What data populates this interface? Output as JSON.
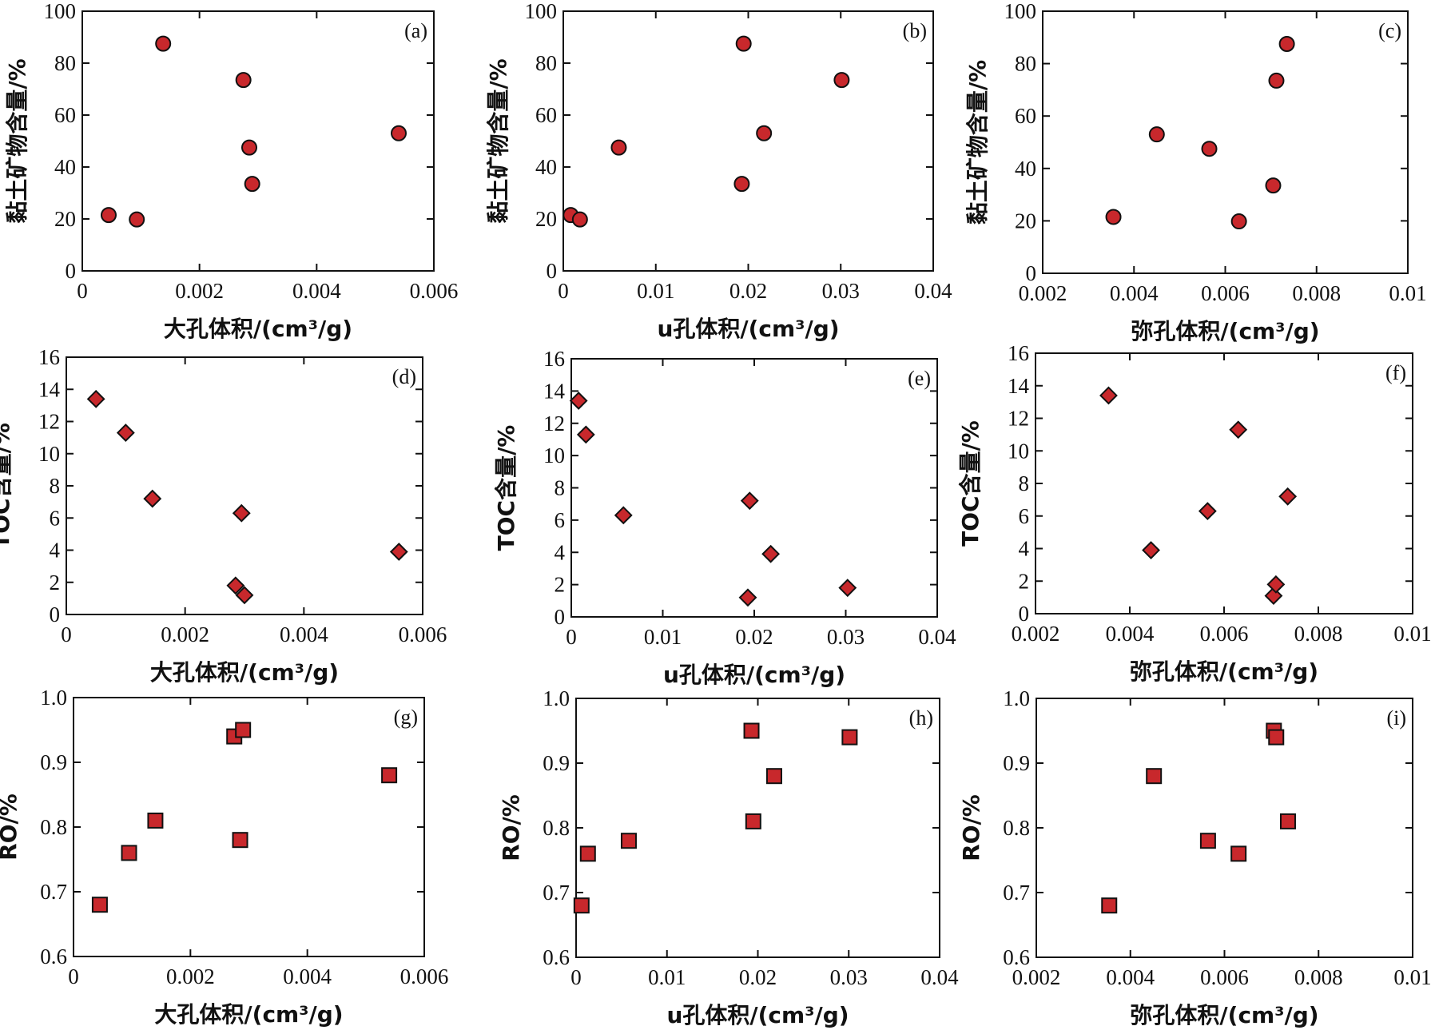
{
  "chart_data": [
    {
      "id": "a",
      "type": "scatter",
      "marker": "circle",
      "tag": "(a)",
      "xlabel": "大孔体积/(cm³/g)",
      "ylabel": "黏土矿物含量/%",
      "xlim": [
        0,
        0.006
      ],
      "ylim": [
        0,
        100
      ],
      "xticks": [
        "0",
        "0.002",
        "0.004",
        "0.006"
      ],
      "yticks": [
        "0",
        "20",
        "40",
        "60",
        "80",
        "100"
      ],
      "points": [
        [
          0.00045,
          21.5
        ],
        [
          0.00093,
          19.8
        ],
        [
          0.00138,
          87.5
        ],
        [
          0.00275,
          73.5
        ],
        [
          0.00285,
          47.5
        ],
        [
          0.0029,
          33.5
        ],
        [
          0.0054,
          53
        ]
      ]
    },
    {
      "id": "b",
      "type": "scatter",
      "marker": "circle",
      "tag": "(b)",
      "xlabel": "u孔体积/(cm³/g)",
      "ylabel": "黏土矿物含量/%",
      "xlim": [
        0,
        0.04
      ],
      "ylim": [
        0,
        100
      ],
      "xticks": [
        "0",
        "0.01",
        "0.02",
        "0.03",
        "0.04"
      ],
      "yticks": [
        "0",
        "20",
        "40",
        "60",
        "80",
        "100"
      ],
      "points": [
        [
          0.0008,
          21.5
        ],
        [
          0.0018,
          19.8
        ],
        [
          0.006,
          47.5
        ],
        [
          0.0193,
          33.5
        ],
        [
          0.0195,
          87.5
        ],
        [
          0.0217,
          53
        ],
        [
          0.0301,
          73.5
        ]
      ]
    },
    {
      "id": "c",
      "type": "scatter",
      "marker": "circle",
      "tag": "(c)",
      "xlabel": "弥孔体积/(cm³/g)",
      "ylabel": "黏土矿物含量/%",
      "xlim": [
        0.002,
        0.01
      ],
      "ylim": [
        0,
        100
      ],
      "xticks": [
        "0.002",
        "0.004",
        "0.006",
        "0.008",
        "0.01"
      ],
      "yticks": [
        "0",
        "20",
        "40",
        "60",
        "80",
        "100"
      ],
      "points": [
        [
          0.00355,
          21.5
        ],
        [
          0.0045,
          53
        ],
        [
          0.00565,
          47.5
        ],
        [
          0.0063,
          19.8
        ],
        [
          0.00705,
          33.5
        ],
        [
          0.00712,
          73.5
        ],
        [
          0.00735,
          87.5
        ]
      ]
    },
    {
      "id": "d",
      "type": "scatter",
      "marker": "diamond",
      "tag": "(d)",
      "xlabel": "大孔体积/(cm³/g)",
      "ylabel": "TOC含量/%",
      "xlim": [
        0,
        0.006
      ],
      "ylim": [
        0,
        16
      ],
      "xticks": [
        "0",
        "0.002",
        "0.004",
        "0.006"
      ],
      "yticks": [
        "0",
        "2",
        "4",
        "6",
        "8",
        "10",
        "12",
        "14",
        "16"
      ],
      "points": [
        [
          0.0005,
          13.4
        ],
        [
          0.001,
          11.3
        ],
        [
          0.00145,
          7.2
        ],
        [
          0.00285,
          1.8
        ],
        [
          0.00295,
          6.3
        ],
        [
          0.003,
          1.2
        ],
        [
          0.0056,
          3.9
        ]
      ]
    },
    {
      "id": "e",
      "type": "scatter",
      "marker": "diamond",
      "tag": "(e)",
      "xlabel": "u孔体积/(cm³/g)",
      "ylabel": "TOC含量/%",
      "xlim": [
        0,
        0.04
      ],
      "ylim": [
        0,
        16
      ],
      "xticks": [
        "0",
        "0.01",
        "0.02",
        "0.03",
        "0.04"
      ],
      "yticks": [
        "0",
        "2",
        "4",
        "6",
        "8",
        "10",
        "12",
        "14",
        "16"
      ],
      "points": [
        [
          0.0008,
          13.4
        ],
        [
          0.0016,
          11.3
        ],
        [
          0.0057,
          6.3
        ],
        [
          0.0193,
          1.2
        ],
        [
          0.0195,
          7.2
        ],
        [
          0.0218,
          3.9
        ],
        [
          0.0302,
          1.8
        ]
      ]
    },
    {
      "id": "f",
      "type": "scatter",
      "marker": "diamond",
      "tag": "(f)",
      "xlabel": "弥孔体积/(cm³/g)",
      "ylabel": "TOC含量/%",
      "xlim": [
        0.002,
        0.01
      ],
      "ylim": [
        0,
        16
      ],
      "xticks": [
        "0.002",
        "0.004",
        "0.006",
        "0.008",
        "0.01"
      ],
      "yticks": [
        "0",
        "2",
        "4",
        "6",
        "8",
        "10",
        "12",
        "14",
        "16"
      ],
      "points": [
        [
          0.00355,
          13.4
        ],
        [
          0.00445,
          3.9
        ],
        [
          0.00565,
          6.3
        ],
        [
          0.0063,
          11.3
        ],
        [
          0.00705,
          1.1
        ],
        [
          0.0071,
          1.8
        ],
        [
          0.00735,
          7.2
        ]
      ]
    },
    {
      "id": "g",
      "type": "scatter",
      "marker": "square",
      "tag": "(g)",
      "xlabel": "大孔体积/(cm³/g)",
      "ylabel": "RO/%",
      "xlim": [
        0,
        0.006
      ],
      "ylim": [
        0.6,
        1.0
      ],
      "xticks": [
        "0",
        "0.002",
        "0.004",
        "0.006"
      ],
      "yticks": [
        "0.6",
        "0.7",
        "0.8",
        "0.9",
        "1.0"
      ],
      "points": [
        [
          0.00045,
          0.68
        ],
        [
          0.00095,
          0.76
        ],
        [
          0.0014,
          0.81
        ],
        [
          0.00275,
          0.94
        ],
        [
          0.00285,
          0.78
        ],
        [
          0.0029,
          0.95
        ],
        [
          0.0054,
          0.88
        ]
      ]
    },
    {
      "id": "h",
      "type": "scatter",
      "marker": "square",
      "tag": "(h)",
      "xlabel": "u孔体积/(cm³/g)",
      "ylabel": "RO/%",
      "xlim": [
        0,
        0.04
      ],
      "ylim": [
        0.6,
        1.0
      ],
      "xticks": [
        "0",
        "0.01",
        "0.02",
        "0.03",
        "0.04"
      ],
      "yticks": [
        "0.6",
        "0.7",
        "0.8",
        "0.9",
        "1.0"
      ],
      "points": [
        [
          0.0006,
          0.68
        ],
        [
          0.0013,
          0.76
        ],
        [
          0.0058,
          0.78
        ],
        [
          0.0193,
          0.95
        ],
        [
          0.0195,
          0.81
        ],
        [
          0.0218,
          0.88
        ],
        [
          0.0301,
          0.94
        ]
      ]
    },
    {
      "id": "i",
      "type": "scatter",
      "marker": "square",
      "tag": "(i)",
      "xlabel": "弥孔体积/(cm³/g)",
      "ylabel": "RO/%",
      "xlim": [
        0.002,
        0.01
      ],
      "ylim": [
        0.6,
        1.0
      ],
      "xticks": [
        "0.002",
        "0.004",
        "0.006",
        "0.008",
        "0.01"
      ],
      "yticks": [
        "0.6",
        "0.7",
        "0.8",
        "0.9",
        "1.0"
      ],
      "points": [
        [
          0.00355,
          0.68
        ],
        [
          0.0045,
          0.88
        ],
        [
          0.00565,
          0.78
        ],
        [
          0.0063,
          0.76
        ],
        [
          0.00705,
          0.95
        ],
        [
          0.0071,
          0.94
        ],
        [
          0.00735,
          0.81
        ]
      ]
    }
  ]
}
